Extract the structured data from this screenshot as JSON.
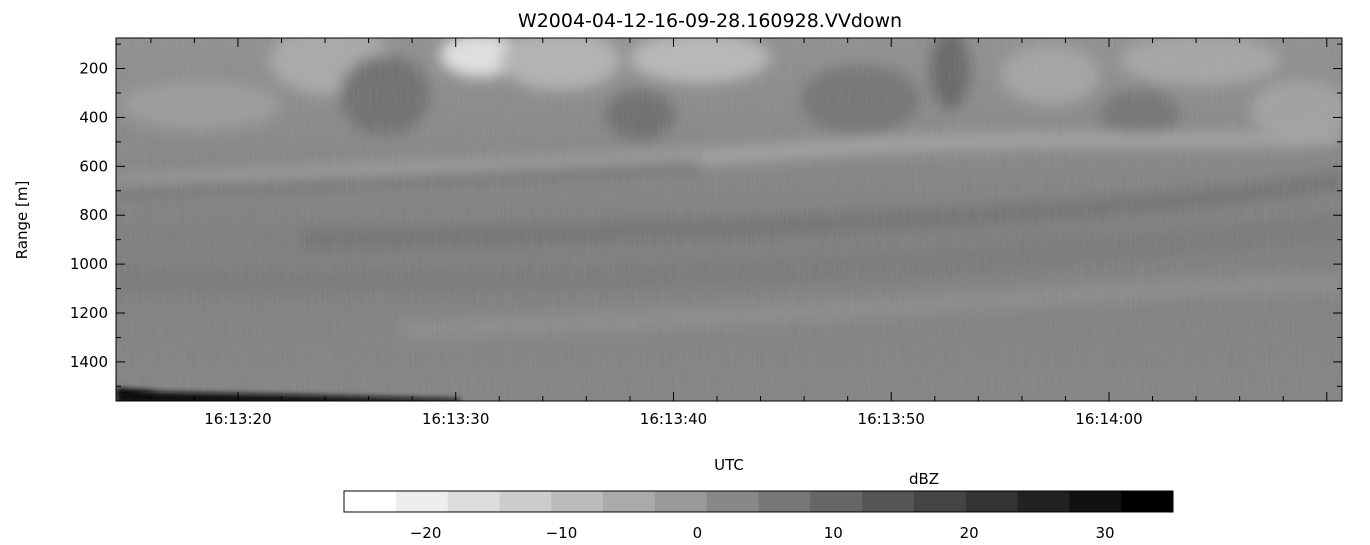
{
  "chart_data": {
    "type": "heatmap",
    "title": "W2004-04-12-16-09-28.160928.VVdown",
    "xlabel": "UTC",
    "ylabel": "Range [m]",
    "x_tick_labels": [
      "16:13:20",
      "16:13:30",
      "16:13:40",
      "16:13:50",
      "16:14:00"
    ],
    "x_ticks_seconds": [
      20,
      30,
      40,
      50,
      60
    ],
    "xlim_seconds_after_16_13_00": [
      14.4,
      70.7
    ],
    "y_tick_labels": [
      "200",
      "400",
      "600",
      "800",
      "1000",
      "1200",
      "1400"
    ],
    "y_ticks": [
      200,
      400,
      600,
      800,
      1000,
      1200,
      1400
    ],
    "ylim": [
      75,
      1560
    ],
    "y_inverted": true,
    "colorbar": {
      "label": "dBZ",
      "tick_labels": [
        "-20",
        "-10",
        "0",
        "10",
        "20",
        "30"
      ],
      "ticks": [
        -20,
        -10,
        0,
        10,
        20,
        30
      ],
      "range": [
        -26,
        35
      ],
      "levels": 16,
      "colormap": "grayscale, white (low) to black (high)"
    },
    "field_description": {
      "background_dBZ": 2,
      "near_range_dBZ": -6,
      "far_range_dBZ": 6,
      "strong_layer_dBZ": 31
    }
  }
}
